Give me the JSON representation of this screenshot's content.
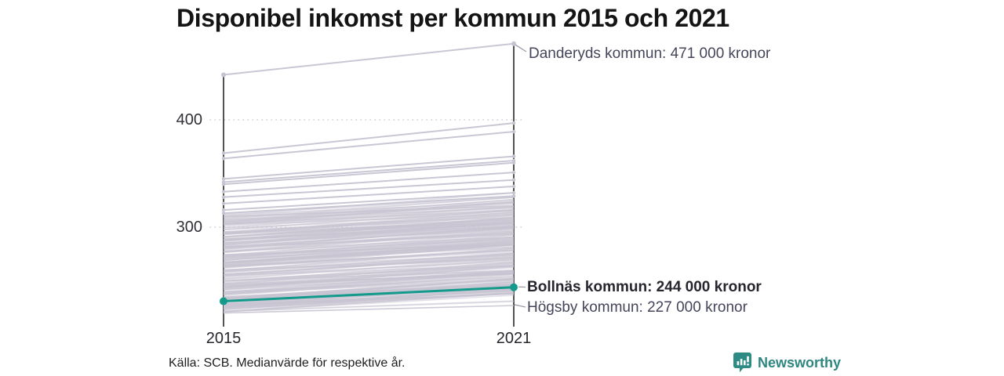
{
  "title": "Disponibel inkomst per kommun 2015 och 2021",
  "source_note": "Källa: SCB. Medianvärde för respektive år.",
  "brand": {
    "name": "Newsworthy"
  },
  "axis_labels": {
    "y400": "400",
    "y300": "300",
    "x_left": "2015",
    "x_right": "2021"
  },
  "colors": {
    "highlight": "#139a8b",
    "background_line": "#c7c4d2",
    "axis": "#1a1a1a",
    "grid": "#c9c9d1",
    "leader": "#9b9ba9",
    "brand": "#2e8680"
  },
  "chart_data": {
    "type": "line",
    "subtype": "slope",
    "title": "Disponibel inkomst per kommun 2015 och 2021",
    "x": [
      2015,
      2021
    ],
    "x_tick_labels": [
      "2015",
      "2021"
    ],
    "y_tick_labels": [
      "300",
      "400"
    ],
    "y_ticks": [
      300,
      400
    ],
    "grid": "dotted-horizontal",
    "series": [
      {
        "name": "Danderyds kommun",
        "values": [
          442,
          471
        ],
        "label": "Danderyds kommun: 471 000 kronor",
        "highlight": false,
        "role": "max-2021"
      },
      {
        "name": "Bollnäs kommun",
        "values": [
          231,
          244
        ],
        "label": "Bollnäs kommun: 244 000 kronor",
        "highlight": true,
        "role": "highlighted"
      },
      {
        "name": "Högsby kommun",
        "values": [
          220,
          227
        ],
        "label": "Högsby kommun: 227 000 kronor",
        "highlight": false,
        "role": "min-2021"
      }
    ],
    "background_lines": {
      "description": "unlabeled municipality lines, 2015 to 2021, values in thousands of kronor (estimated from pixels)",
      "distinct_upper": [
        [
          369,
          397
        ],
        [
          364,
          389
        ],
        [
          345,
          366
        ],
        [
          342,
          362
        ],
        [
          340,
          360
        ],
        [
          333,
          351
        ],
        [
          328,
          344
        ],
        [
          322,
          338
        ],
        [
          316,
          332
        ],
        [
          313,
          329
        ]
      ],
      "band": {
        "count": 260,
        "v2015_min": 221,
        "v2015_max": 312,
        "rise_min": 9,
        "rise_max": 22,
        "seed": 7
      }
    }
  }
}
